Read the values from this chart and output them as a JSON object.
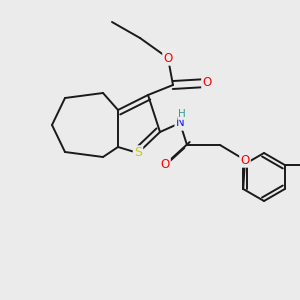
{
  "background_color": "#ebebeb",
  "bond_color": "#1a1a1a",
  "bond_width": 1.4,
  "atom_colors": {
    "S": "#cccc00",
    "O": "#ff0000",
    "N": "#2020ff",
    "H_on_N": "#339999",
    "C": "#1a1a1a"
  },
  "font_size_atom": 8.5
}
